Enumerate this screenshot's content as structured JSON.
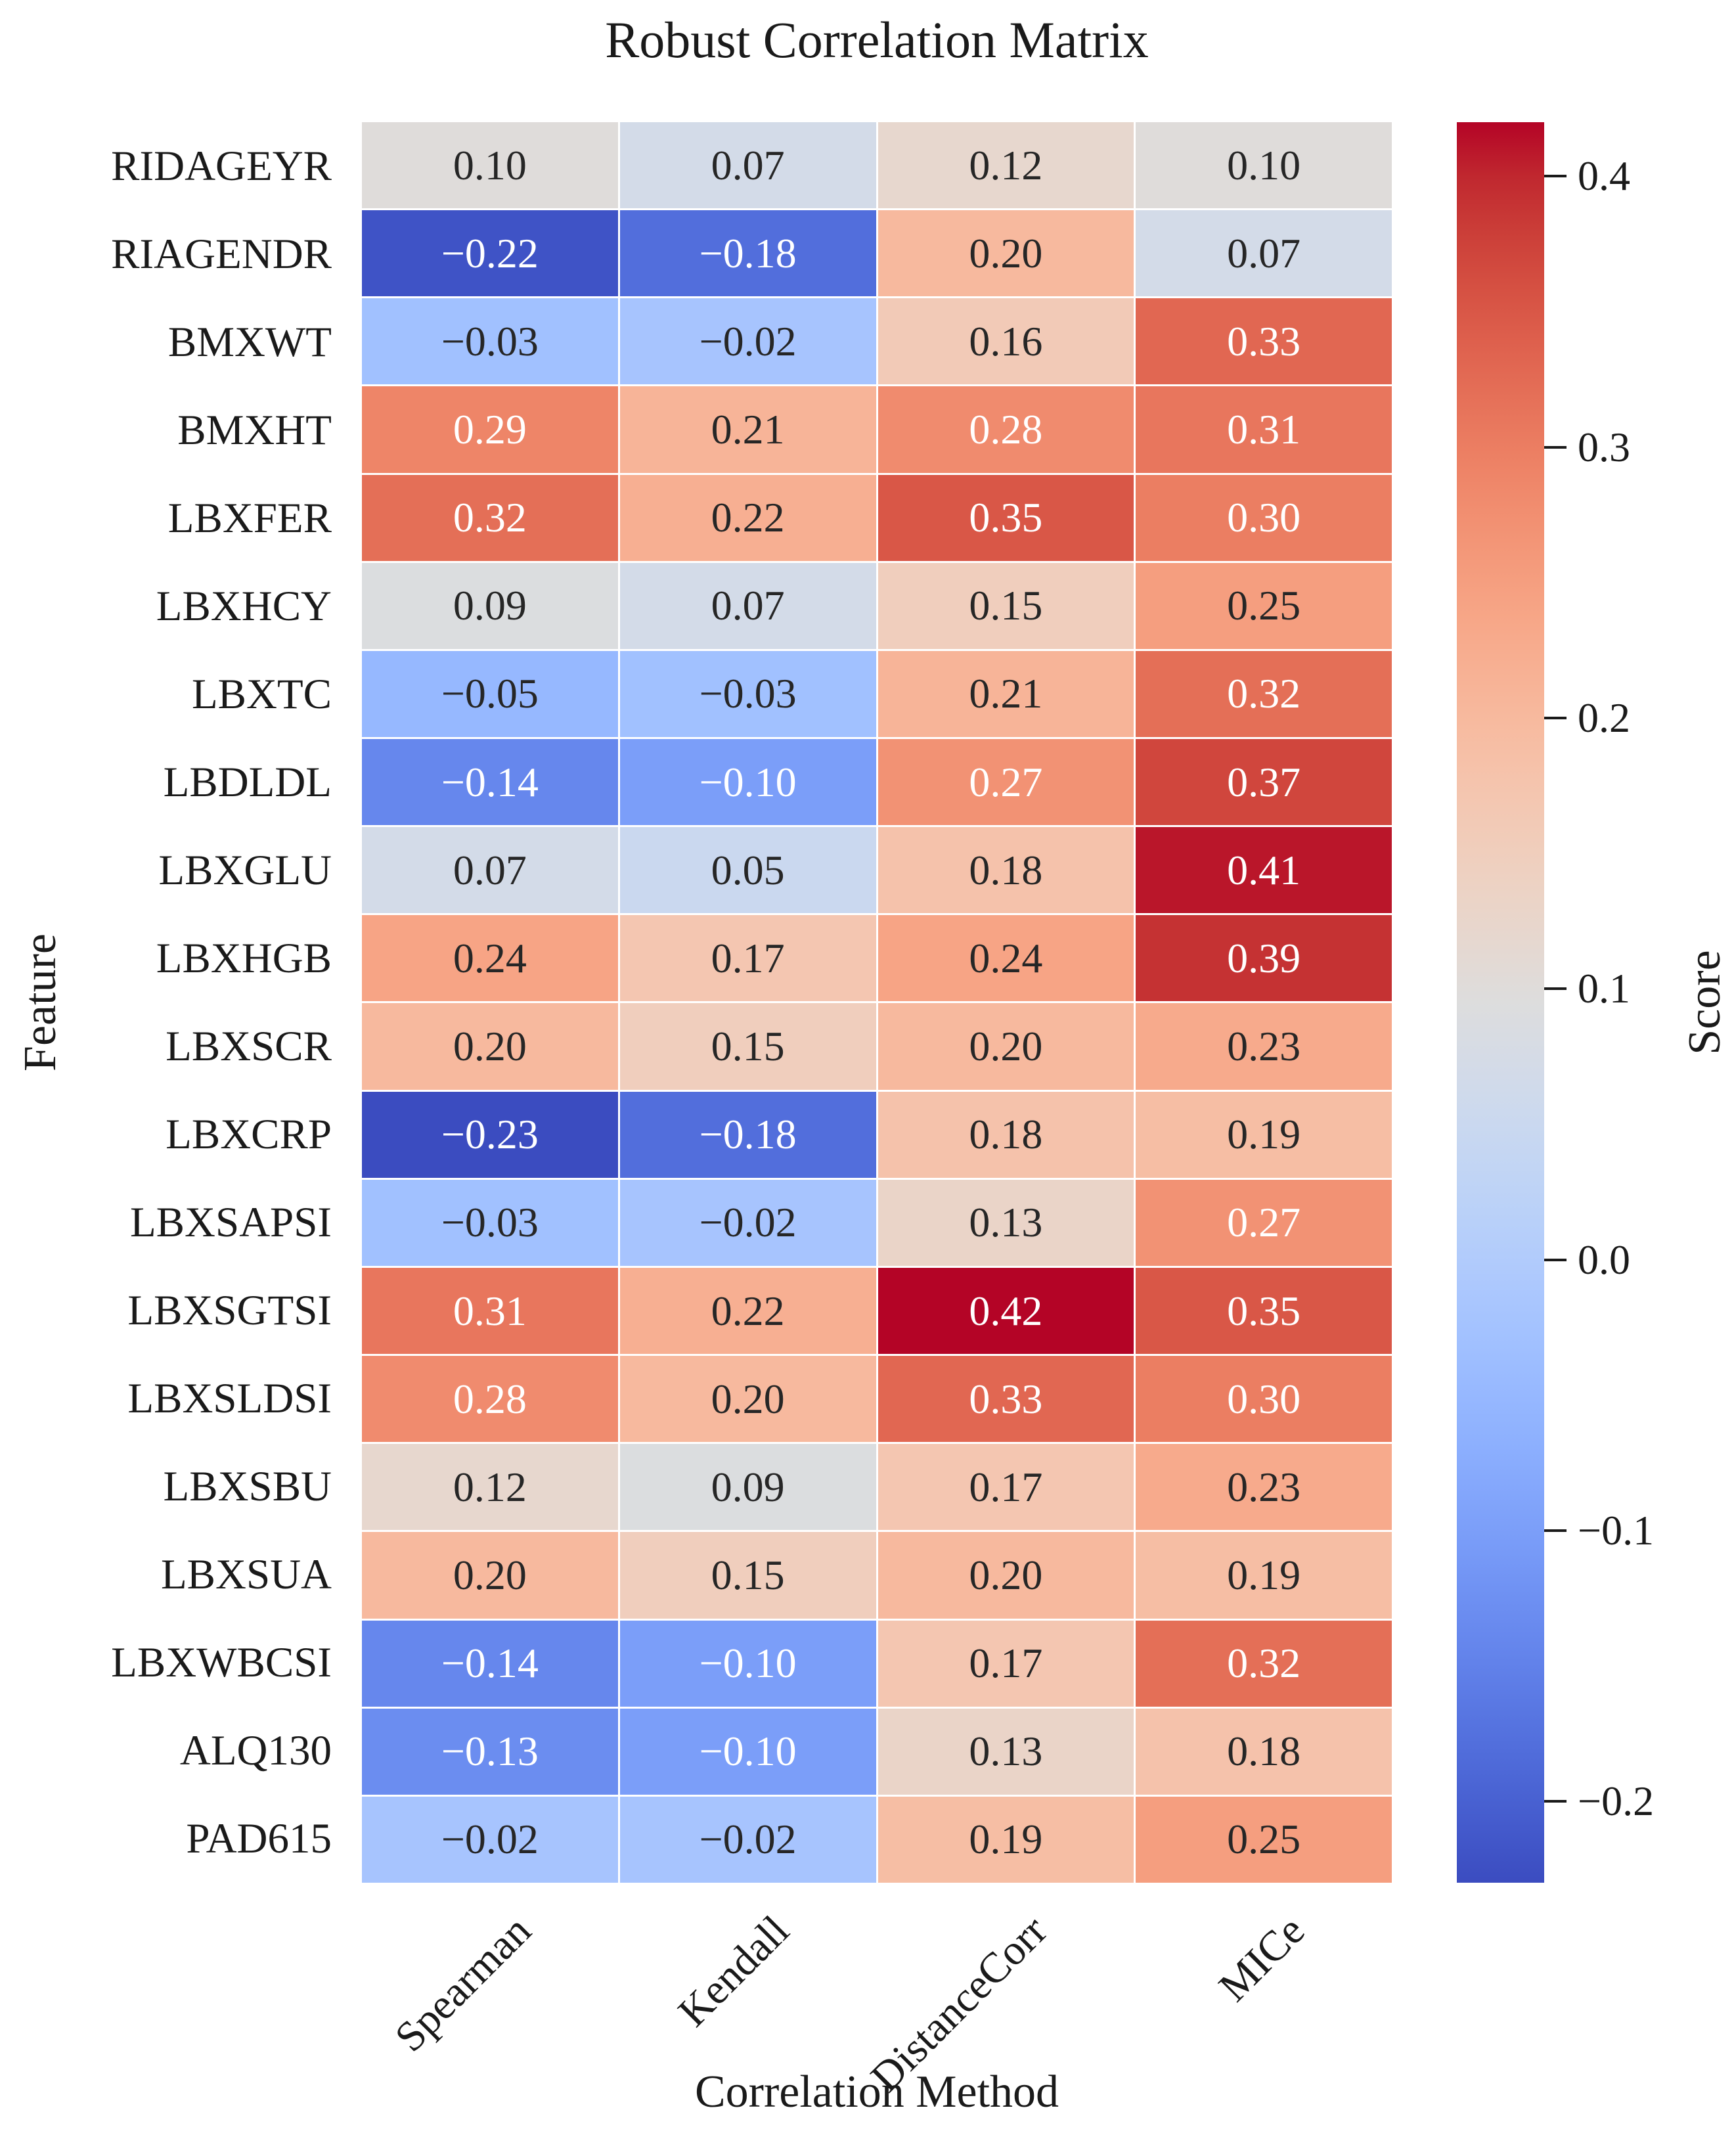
{
  "chart_data": {
    "type": "heatmap",
    "title": "Robust Correlation Matrix",
    "xlabel": "Correlation Method",
    "ylabel": "Feature",
    "columns": [
      "Spearman",
      "Kendall",
      "DistanceCorr",
      "MICe"
    ],
    "rows": [
      "RIDAGEYR",
      "RIAGENDR",
      "BMXWT",
      "BMXHT",
      "LBXFER",
      "LBXHCY",
      "LBXTC",
      "LBDLDL",
      "LBXGLU",
      "LBXHGB",
      "LBXSCR",
      "LBXCRP",
      "LBXSAPSI",
      "LBXSGTSI",
      "LBXSLDSI",
      "LBXSBU",
      "LBXSUA",
      "LBXWBCSI",
      "ALQ130",
      "PAD615"
    ],
    "matrix": [
      [
        0.1,
        0.07,
        0.12,
        0.1
      ],
      [
        -0.22,
        -0.18,
        0.2,
        0.07
      ],
      [
        -0.03,
        -0.02,
        0.16,
        0.33
      ],
      [
        0.29,
        0.21,
        0.28,
        0.31
      ],
      [
        0.32,
        0.22,
        0.35,
        0.3
      ],
      [
        0.09,
        0.07,
        0.15,
        0.25
      ],
      [
        -0.05,
        -0.03,
        0.21,
        0.32
      ],
      [
        -0.14,
        -0.1,
        0.27,
        0.37
      ],
      [
        0.07,
        0.05,
        0.18,
        0.41
      ],
      [
        0.24,
        0.17,
        0.24,
        0.39
      ],
      [
        0.2,
        0.15,
        0.2,
        0.23
      ],
      [
        -0.23,
        -0.18,
        0.18,
        0.19
      ],
      [
        -0.03,
        -0.02,
        0.13,
        0.27
      ],
      [
        0.31,
        0.22,
        0.42,
        0.35
      ],
      [
        0.28,
        0.2,
        0.33,
        0.3
      ],
      [
        0.12,
        0.09,
        0.17,
        0.23
      ],
      [
        0.2,
        0.15,
        0.2,
        0.19
      ],
      [
        -0.14,
        -0.1,
        0.17,
        0.32
      ],
      [
        -0.13,
        -0.1,
        0.13,
        0.18
      ],
      [
        -0.02,
        -0.02,
        0.19,
        0.25
      ]
    ],
    "colormap": "coolwarm",
    "vmin": -0.23,
    "vmax": 0.42,
    "grid_line_color": "#ffffff",
    "annotation_dark_color": "#262626",
    "annotation_light_color": "#ffffff",
    "colorbar": {
      "label": "Score",
      "ticks": [
        0.4,
        0.3,
        0.2,
        0.1,
        0.0,
        -0.1,
        -0.2
      ]
    }
  }
}
